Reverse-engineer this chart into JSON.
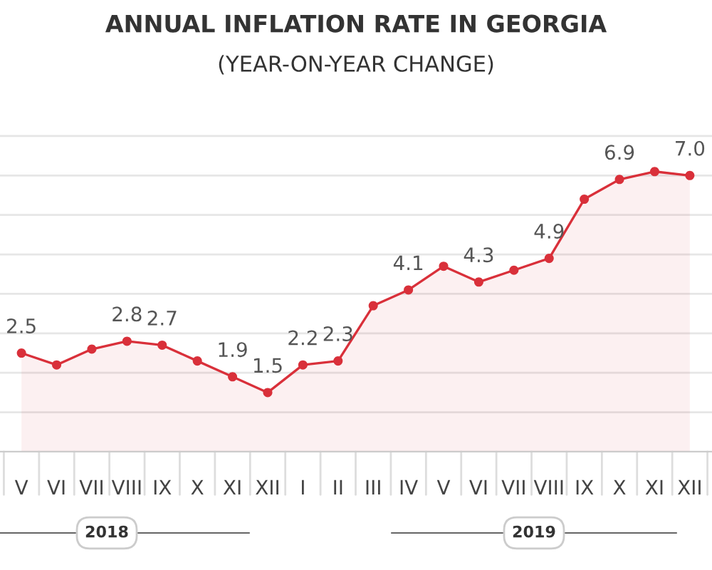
{
  "chart_data": {
    "type": "area",
    "title": "ANNUAL INFLATION RATE IN GEORGIA",
    "subtitle": "(YEAR-ON-YEAR CHANGE)",
    "categories": [
      "V",
      "VI",
      "VII",
      "VIII",
      "IX",
      "X",
      "XI",
      "XII",
      "I",
      "II",
      "III",
      "IV",
      "V",
      "VI",
      "VII",
      "VIII",
      "IX",
      "X",
      "XI",
      "XII"
    ],
    "series": [
      {
        "color": "#d9303a",
        "values": [
          2.5,
          2.2,
          2.6,
          2.8,
          2.7,
          2.3,
          1.9,
          1.5,
          2.2,
          2.3,
          3.7,
          4.1,
          4.7,
          4.3,
          4.6,
          4.9,
          6.4,
          6.9,
          7.1,
          7.0
        ],
        "value_labels": [
          "2.5",
          null,
          null,
          "2.8",
          "2.7",
          null,
          "1.9",
          "1.5",
          "2.2",
          "2.3",
          null,
          "4.1",
          null,
          "4.3",
          null,
          "4.9",
          null,
          "6.9",
          null,
          "7.0"
        ]
      }
    ],
    "annotations": [
      "2018",
      "2019"
    ],
    "marker": "circle",
    "grid": "y",
    "legend": false
  }
}
